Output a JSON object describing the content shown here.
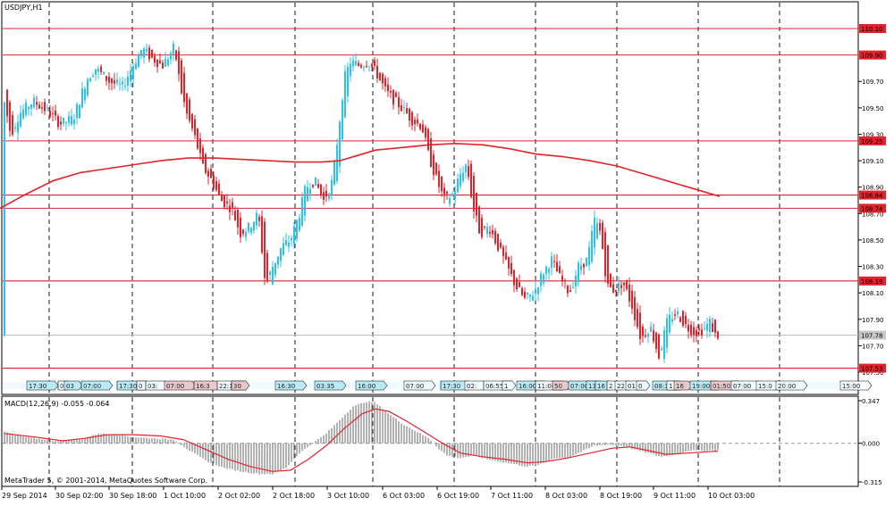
{
  "window": {
    "symbol_timeframe": "USDJPY,H1"
  },
  "indicator": {
    "title": "MACD(12,26,9) -0.055 -0.064"
  },
  "footer": {
    "copyright": "MetaTrader 5, © 2001-2014, MetaQuotes Software Corp."
  },
  "colors": {
    "bull": "#2dc3e6",
    "bear": "#e2232b",
    "level": "#e2232b",
    "ma": "#e2232b",
    "macd_hist": "#808080",
    "signal": "#e2232b",
    "current": "#bdbdbd"
  },
  "chart_data": [
    {
      "type": "candlestick",
      "symbol": "USDJPY",
      "timeframe": "H1",
      "y_range": [
        107.5,
        110.25
      ],
      "y_ticks": [
        "109.70",
        "109.50",
        "109.30",
        "109.10",
        "108.90",
        "108.70",
        "108.50",
        "108.30",
        "108.10",
        "107.90",
        "107.70",
        "107.50"
      ],
      "x_tick_labels": [
        "29 Sep 2014",
        "30 Sep 02:00",
        "30 Sep 18:00",
        "1 Oct 10:00",
        "2 Oct 02:00",
        "2 Oct 18:00",
        "3 Oct 10:00",
        "6 Oct 03:00",
        "6 Oct 19:00",
        "7 Oct 11:00",
        "8 Oct 03:00",
        "8 Oct 19:00",
        "9 Oct 11:00",
        "10 Oct 03:00"
      ],
      "horizontal_levels": [
        "110.10",
        "109.90",
        "109.25",
        "108.84",
        "108.74",
        "108.19",
        "107.53"
      ],
      "current_price": "107.78",
      "moving_average": [
        [
          0,
          108.74
        ],
        [
          30,
          108.85
        ],
        [
          60,
          108.95
        ],
        [
          90,
          109.01
        ],
        [
          120,
          109.04
        ],
        [
          150,
          109.07
        ],
        [
          180,
          109.1
        ],
        [
          210,
          109.12
        ],
        [
          240,
          109.12
        ],
        [
          270,
          109.11
        ],
        [
          300,
          109.1
        ],
        [
          330,
          109.09
        ],
        [
          360,
          109.09
        ],
        [
          380,
          109.1
        ],
        [
          400,
          109.14
        ],
        [
          420,
          109.18
        ],
        [
          450,
          109.2
        ],
        [
          480,
          109.22
        ],
        [
          510,
          109.23
        ],
        [
          540,
          109.22
        ],
        [
          570,
          109.19
        ],
        [
          600,
          109.15
        ],
        [
          630,
          109.13
        ],
        [
          660,
          109.1
        ],
        [
          690,
          109.06
        ],
        [
          720,
          109.0
        ],
        [
          750,
          108.94
        ],
        [
          780,
          108.88
        ],
        [
          805,
          108.83
        ]
      ],
      "price_path": [
        [
          5,
          109.64
        ],
        [
          15,
          109.3
        ],
        [
          25,
          109.46
        ],
        [
          40,
          109.55
        ],
        [
          55,
          109.48
        ],
        [
          70,
          109.38
        ],
        [
          85,
          109.42
        ],
        [
          100,
          109.72
        ],
        [
          110,
          109.8
        ],
        [
          125,
          109.7
        ],
        [
          140,
          109.66
        ],
        [
          150,
          109.8
        ],
        [
          162,
          109.95
        ],
        [
          172,
          109.88
        ],
        [
          185,
          109.82
        ],
        [
          198,
          109.96
        ],
        [
          205,
          109.65
        ],
        [
          212,
          109.45
        ],
        [
          220,
          109.3
        ],
        [
          230,
          109.05
        ],
        [
          240,
          108.95
        ],
        [
          250,
          108.8
        ],
        [
          262,
          108.74
        ],
        [
          272,
          108.55
        ],
        [
          282,
          108.6
        ],
        [
          292,
          108.7
        ],
        [
          300,
          108.15
        ],
        [
          308,
          108.3
        ],
        [
          318,
          108.45
        ],
        [
          328,
          108.5
        ],
        [
          338,
          108.7
        ],
        [
          345,
          108.9
        ],
        [
          355,
          108.95
        ],
        [
          365,
          108.8
        ],
        [
          375,
          108.95
        ],
        [
          382,
          109.35
        ],
        [
          388,
          109.72
        ],
        [
          395,
          109.85
        ],
        [
          405,
          109.82
        ],
        [
          415,
          109.85
        ],
        [
          425,
          109.75
        ],
        [
          435,
          109.62
        ],
        [
          445,
          109.55
        ],
        [
          455,
          109.48
        ],
        [
          465,
          109.4
        ],
        [
          475,
          109.36
        ],
        [
          482,
          109.15
        ],
        [
          490,
          108.98
        ],
        [
          500,
          108.8
        ],
        [
          510,
          108.85
        ],
        [
          518,
          109.0
        ],
        [
          525,
          109.08
        ],
        [
          532,
          108.75
        ],
        [
          540,
          108.55
        ],
        [
          550,
          108.6
        ],
        [
          560,
          108.45
        ],
        [
          570,
          108.3
        ],
        [
          580,
          108.15
        ],
        [
          590,
          108.05
        ],
        [
          600,
          108.1
        ],
        [
          610,
          108.25
        ],
        [
          620,
          108.35
        ],
        [
          630,
          108.2
        ],
        [
          640,
          108.1
        ],
        [
          650,
          108.3
        ],
        [
          660,
          108.35
        ],
        [
          668,
          108.65
        ],
        [
          675,
          108.55
        ],
        [
          682,
          108.15
        ],
        [
          690,
          108.12
        ],
        [
          700,
          108.18
        ],
        [
          710,
          108.0
        ],
        [
          720,
          107.75
        ],
        [
          730,
          107.85
        ],
        [
          740,
          107.62
        ],
        [
          750,
          107.9
        ],
        [
          760,
          107.95
        ],
        [
          770,
          107.85
        ],
        [
          780,
          107.8
        ],
        [
          790,
          107.82
        ],
        [
          797,
          107.88
        ],
        [
          803,
          107.78
        ]
      ]
    },
    {
      "type": "bar",
      "indicator": "MACD(12,26,9)",
      "y_range": [
        -0.315,
        0.347
      ],
      "y_ticks": [
        "0.347",
        "0.000",
        "-0.315"
      ],
      "histogram_path": [
        [
          5,
          0.09
        ],
        [
          30,
          0.05
        ],
        [
          60,
          0.02
        ],
        [
          90,
          0.03
        ],
        [
          110,
          0.08
        ],
        [
          130,
          0.07
        ],
        [
          150,
          0.05
        ],
        [
          170,
          0.04
        ],
        [
          195,
          0.03
        ],
        [
          210,
          -0.05
        ],
        [
          230,
          -0.14
        ],
        [
          250,
          -0.2
        ],
        [
          270,
          -0.23
        ],
        [
          290,
          -0.25
        ],
        [
          305,
          -0.25
        ],
        [
          320,
          -0.2
        ],
        [
          335,
          -0.08
        ],
        [
          350,
          0.0
        ],
        [
          365,
          0.08
        ],
        [
          380,
          0.19
        ],
        [
          395,
          0.3
        ],
        [
          410,
          0.34
        ],
        [
          420,
          0.33
        ],
        [
          435,
          0.24
        ],
        [
          450,
          0.16
        ],
        [
          465,
          0.1
        ],
        [
          480,
          0.04
        ],
        [
          490,
          -0.04
        ],
        [
          500,
          -0.1
        ],
        [
          515,
          -0.12
        ],
        [
          530,
          -0.1
        ],
        [
          545,
          -0.13
        ],
        [
          560,
          -0.15
        ],
        [
          575,
          -0.17
        ],
        [
          590,
          -0.19
        ],
        [
          605,
          -0.17
        ],
        [
          620,
          -0.12
        ],
        [
          635,
          -0.12
        ],
        [
          650,
          -0.07
        ],
        [
          665,
          -0.02
        ],
        [
          680,
          -0.01
        ],
        [
          695,
          -0.02
        ],
        [
          710,
          -0.05
        ],
        [
          725,
          -0.08
        ],
        [
          740,
          -0.11
        ],
        [
          755,
          -0.09
        ],
        [
          770,
          -0.06
        ],
        [
          785,
          -0.06
        ],
        [
          803,
          -0.055
        ]
      ],
      "signal_path": [
        [
          5,
          0.08
        ],
        [
          40,
          0.05
        ],
        [
          70,
          0.02
        ],
        [
          95,
          0.04
        ],
        [
          120,
          0.07
        ],
        [
          150,
          0.07
        ],
        [
          180,
          0.06
        ],
        [
          205,
          0.03
        ],
        [
          230,
          -0.05
        ],
        [
          255,
          -0.13
        ],
        [
          280,
          -0.19
        ],
        [
          305,
          -0.23
        ],
        [
          325,
          -0.22
        ],
        [
          345,
          -0.13
        ],
        [
          365,
          -0.02
        ],
        [
          385,
          0.12
        ],
        [
          405,
          0.24
        ],
        [
          420,
          0.28
        ],
        [
          435,
          0.26
        ],
        [
          455,
          0.18
        ],
        [
          475,
          0.09
        ],
        [
          495,
          0.0
        ],
        [
          515,
          -0.08
        ],
        [
          540,
          -0.11
        ],
        [
          565,
          -0.13
        ],
        [
          590,
          -0.16
        ],
        [
          610,
          -0.15
        ],
        [
          635,
          -0.12
        ],
        [
          660,
          -0.08
        ],
        [
          685,
          -0.04
        ],
        [
          705,
          -0.03
        ],
        [
          725,
          -0.06
        ],
        [
          745,
          -0.09
        ],
        [
          770,
          -0.08
        ],
        [
          790,
          -0.07
        ],
        [
          803,
          -0.064
        ]
      ]
    }
  ],
  "tape": {
    "labels": [
      {
        "x": 30,
        "text": "17:30",
        "c": "b"
      },
      {
        "x": 65,
        "text": "0",
        "c": "n"
      },
      {
        "x": 72,
        "text": "03",
        "c": "b"
      },
      {
        "x": 91,
        "text": "07:00",
        "c": "b"
      },
      {
        "x": 131,
        "text": "17:30",
        "c": "b"
      },
      {
        "x": 153,
        "text": "0",
        "c": "n"
      },
      {
        "x": 163,
        "text": "03:",
        "c": "n"
      },
      {
        "x": 184,
        "text": "07:00",
        "c": "r"
      },
      {
        "x": 217,
        "text": "16:3",
        "c": "r"
      },
      {
        "x": 243,
        "text": "22:19",
        "c": "n"
      },
      {
        "x": 259,
        "text": "30",
        "c": "r"
      },
      {
        "x": 308,
        "text": "16:30",
        "c": "b"
      },
      {
        "x": 352,
        "text": "03:35",
        "c": "b"
      },
      {
        "x": 398,
        "text": "16:00",
        "c": "b"
      },
      {
        "x": 452,
        "text": "07:00",
        "c": "n"
      },
      {
        "x": 493,
        "text": "17:30",
        "c": "b"
      },
      {
        "x": 520,
        "text": "02:",
        "c": "n"
      },
      {
        "x": 541,
        "text": "06:55",
        "c": "n"
      },
      {
        "x": 562,
        "text": "1",
        "c": "n"
      },
      {
        "x": 578,
        "text": "16:00",
        "c": "b"
      },
      {
        "x": 599,
        "text": "11:00",
        "c": "n"
      },
      {
        "x": 618,
        "text": "50",
        "c": "r"
      },
      {
        "x": 636,
        "text": "07:00",
        "c": "b"
      },
      {
        "x": 656,
        "text": "13",
        "c": "b"
      },
      {
        "x": 666,
        "text": "16",
        "c": "b"
      },
      {
        "x": 679,
        "text": "2",
        "c": "n"
      },
      {
        "x": 688,
        "text": "22",
        "c": "n"
      },
      {
        "x": 700,
        "text": "01:",
        "c": "n"
      },
      {
        "x": 712,
        "text": "0",
        "c": "n"
      },
      {
        "x": 730,
        "text": "08:30",
        "c": "b"
      },
      {
        "x": 746,
        "text": "1",
        "c": "n"
      },
      {
        "x": 754,
        "text": "16",
        "c": "r"
      },
      {
        "x": 772,
        "text": "19:00",
        "c": "b"
      },
      {
        "x": 795,
        "text": "01:50",
        "c": "r"
      },
      {
        "x": 818,
        "text": "07:00",
        "c": "n"
      },
      {
        "x": 846,
        "text": "15:0",
        "c": "n"
      },
      {
        "x": 868,
        "text": "20:00",
        "c": "n"
      },
      {
        "x": 940,
        "text": "15:00",
        "c": "n"
      }
    ]
  }
}
